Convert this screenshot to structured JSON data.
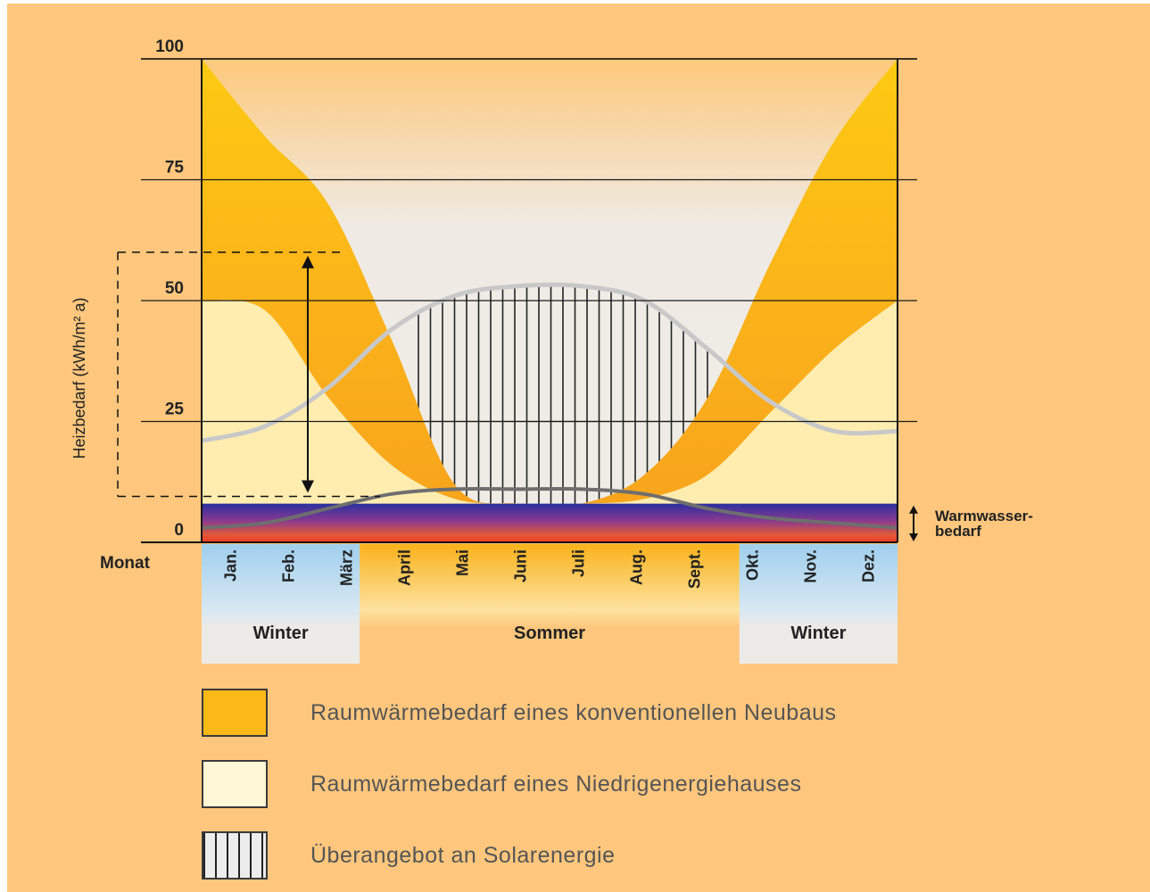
{
  "chart_data": {
    "type": "area",
    "ylabel": "Heizbedarf (kWh/m² a)",
    "xlabel": "Monat",
    "ylim": [
      0,
      100
    ],
    "yticks": [
      "100",
      "75",
      "50",
      "25",
      "0"
    ],
    "ytick_values": [
      100,
      75,
      50,
      25,
      0
    ],
    "categories": [
      "Jan.",
      "Feb.",
      "März",
      "April",
      "Mai",
      "Juni",
      "Juli",
      "Aug.",
      "Sept.",
      "Okt.",
      "Nov.",
      "Dez."
    ],
    "seasons": [
      {
        "label": "Winter",
        "from": "Jan.",
        "to": "März"
      },
      {
        "label": "Sommer",
        "from": "April",
        "to": "Sept."
      },
      {
        "label": "Winter",
        "from": "Okt.",
        "to": "Dez."
      }
    ],
    "series": [
      {
        "name": "Raumwärmebedarf eines konventionellen Neubaus",
        "x": [
          0,
          1,
          2,
          3,
          4,
          5,
          6,
          7,
          8,
          9,
          10,
          11
        ],
        "values": [
          100,
          84,
          70,
          42,
          12,
          8,
          8,
          14,
          30,
          58,
          83,
          100
        ]
      },
      {
        "name": "Raumwärmebedarf eines Niedrigenergiehauses",
        "x": [
          0,
          1,
          2,
          3,
          4,
          5,
          6,
          7,
          8,
          9,
          10,
          11
        ],
        "values": [
          50,
          48,
          30,
          16,
          9,
          8,
          8,
          9,
          14,
          27,
          40,
          50
        ]
      },
      {
        "name": "Solarenergie",
        "x": [
          0,
          1,
          2,
          3,
          4,
          5,
          6,
          7,
          8,
          9,
          10,
          11
        ],
        "values": [
          21,
          24,
          32,
          44,
          51,
          53,
          53,
          50,
          40,
          29,
          23,
          23
        ]
      },
      {
        "name": "Warmwasserbedarf",
        "x": [
          0,
          1,
          2,
          3,
          4,
          5,
          6,
          7,
          8,
          9,
          10,
          11
        ],
        "values": [
          3,
          4,
          7,
          10,
          11,
          11,
          11,
          10,
          7,
          5,
          4,
          3
        ]
      }
    ],
    "warmwasser_band": 8,
    "annotations": [
      "Warmwasser-",
      "bedarf"
    ],
    "grid": true
  },
  "legend": [
    {
      "label": "Raumwärmebedarf eines konventionellen Neubaus",
      "color": "#fbb917"
    },
    {
      "label": "Raumwärmebedarf eines Niedrigenergiehauses",
      "color": "#fff7d6"
    },
    {
      "label": "Überangebot an Solarenergie",
      "color": "#ececec"
    }
  ],
  "colors": {
    "background": "#fec77d",
    "konventionell": "#fbb917",
    "niedrigenergie": "#ffedb0",
    "sky": "#eeeae3",
    "solar_line": "#c8c8c8",
    "warmwasser_line": "#6e6e6e"
  }
}
